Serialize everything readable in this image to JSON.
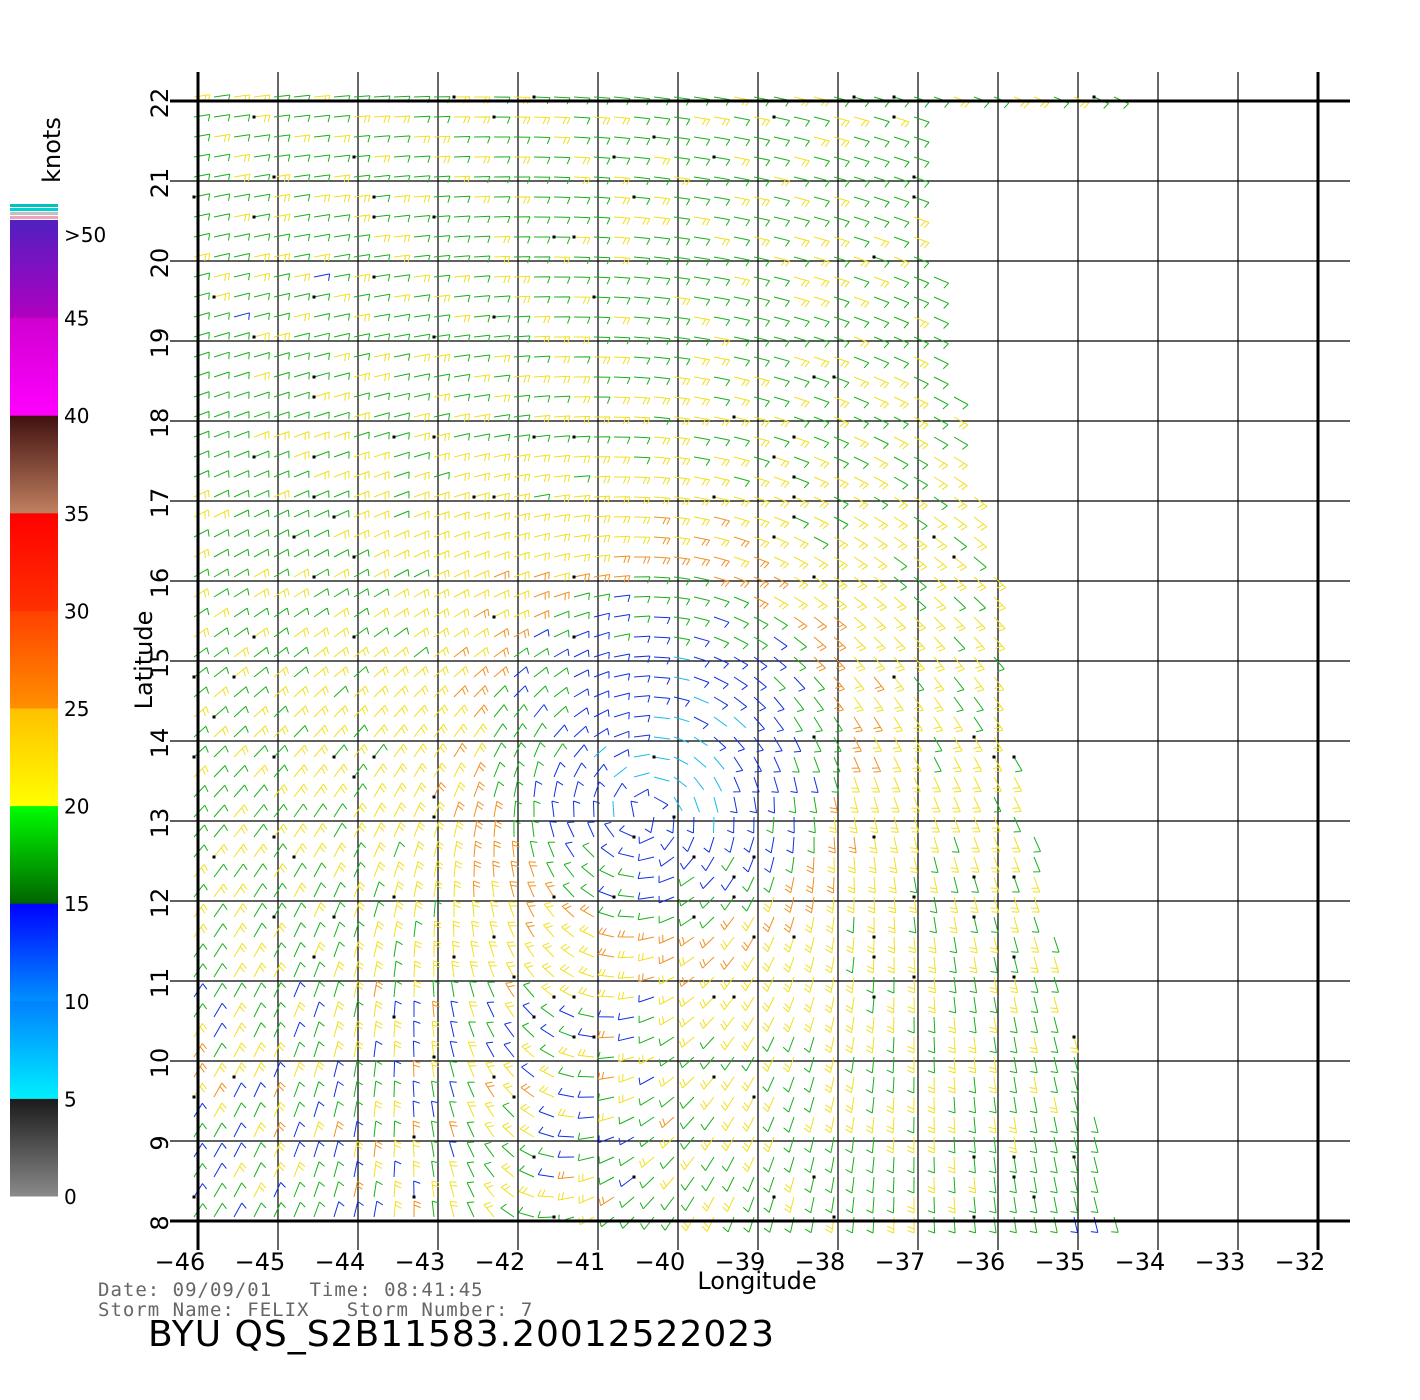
{
  "chart_data": {
    "type": "wind_barbs",
    "xlabel": "Longitude",
    "ylabel": "Latitude",
    "xlim": [
      -46,
      -32
    ],
    "ylim": [
      8,
      22
    ],
    "x_ticks": [
      -46,
      -45,
      -44,
      -43,
      -42,
      -41,
      -40,
      -39,
      -38,
      -37,
      -36,
      -35,
      -34,
      -33,
      -32
    ],
    "y_ticks": [
      8,
      9,
      10,
      11,
      12,
      13,
      14,
      15,
      16,
      17,
      18,
      19,
      20,
      21,
      22
    ],
    "grid": true,
    "storm_center": {
      "lon": -40.2,
      "lat": 13.9
    },
    "swath_east_edge": [
      [
        -37.0,
        22
      ],
      [
        -36.7,
        19
      ],
      [
        -36.0,
        16
      ],
      [
        -35.8,
        14
      ],
      [
        -34.5,
        8
      ]
    ],
    "colorbar": {
      "unit": "knots",
      "tick_labels": [
        "0",
        "5",
        "10",
        "15",
        "20",
        "25",
        "30",
        "35",
        "40",
        "45",
        ">50"
      ],
      "bands": [
        {
          "min": 0,
          "max": 5,
          "colors": [
            "#8a8a8a",
            "#1a1a1a"
          ]
        },
        {
          "min": 5,
          "max": 10,
          "colors": [
            "#00f0ff",
            "#0080ff"
          ]
        },
        {
          "min": 10,
          "max": 15,
          "colors": [
            "#0090ff",
            "#0000ff"
          ]
        },
        {
          "min": 15,
          "max": 20,
          "colors": [
            "#006400",
            "#00ff00"
          ]
        },
        {
          "min": 20,
          "max": 25,
          "colors": [
            "#ffff00",
            "#ffc000"
          ]
        },
        {
          "min": 25,
          "max": 30,
          "colors": [
            "#ff9000",
            "#ff4000"
          ]
        },
        {
          "min": 30,
          "max": 35,
          "colors": [
            "#ff3000",
            "#ff0000"
          ]
        },
        {
          "min": 35,
          "max": 40,
          "colors": [
            "#c08060",
            "#401010"
          ]
        },
        {
          "min": 40,
          "max": 45,
          "colors": [
            "#ff00ff",
            "#d000d0"
          ]
        },
        {
          "min": 45,
          "max": 50,
          "colors": [
            "#b000c0",
            "#5020c0"
          ]
        }
      ]
    }
  },
  "info": {
    "date_line": "Date: 09/09/01   Time: 08:41:45",
    "storm_line": "Storm Name: FELIX   Storm Number: 7",
    "file_line": "BYU QS_S2B11583.20012522023"
  }
}
